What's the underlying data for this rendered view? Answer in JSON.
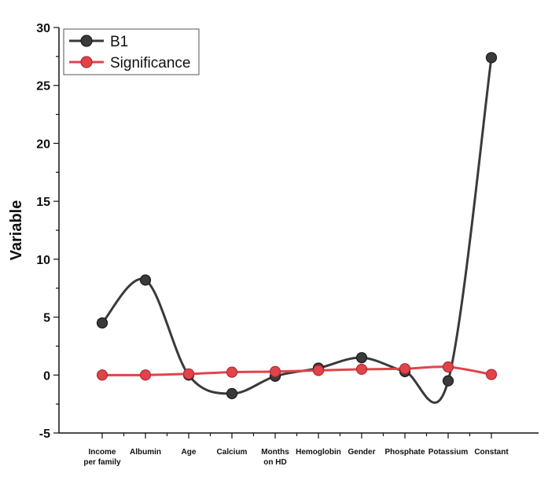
{
  "chart_data": {
    "type": "line",
    "xlabel": "",
    "ylabel": "Variable",
    "ylim": [
      -5,
      30
    ],
    "yticks": [
      "-5",
      "0",
      "5",
      "10",
      "15",
      "20",
      "25",
      "30"
    ],
    "categories": [
      [
        "Income",
        "per family"
      ],
      [
        "Albumin"
      ],
      [
        "Age"
      ],
      [
        "Calcium"
      ],
      [
        "Months",
        "on HD"
      ],
      [
        "Hemoglobin"
      ],
      [
        "Gender"
      ],
      [
        "Phosphate"
      ],
      [
        "Potassium"
      ],
      [
        "Constant"
      ]
    ],
    "series": [
      {
        "name": "B1",
        "color": "#3a3a3a",
        "marker": "#3a3a3a",
        "values": [
          4.5,
          8.2,
          0.0,
          -1.6,
          -0.1,
          0.6,
          1.5,
          0.3,
          -0.5,
          27.4
        ]
      },
      {
        "name": "Significance",
        "color": "#e0444a",
        "marker": "#e0444a",
        "values": [
          0.0,
          0.0,
          0.1,
          0.25,
          0.3,
          0.4,
          0.5,
          0.55,
          0.7,
          0.05
        ]
      }
    ],
    "grid": false,
    "legend_position": "top-left"
  }
}
